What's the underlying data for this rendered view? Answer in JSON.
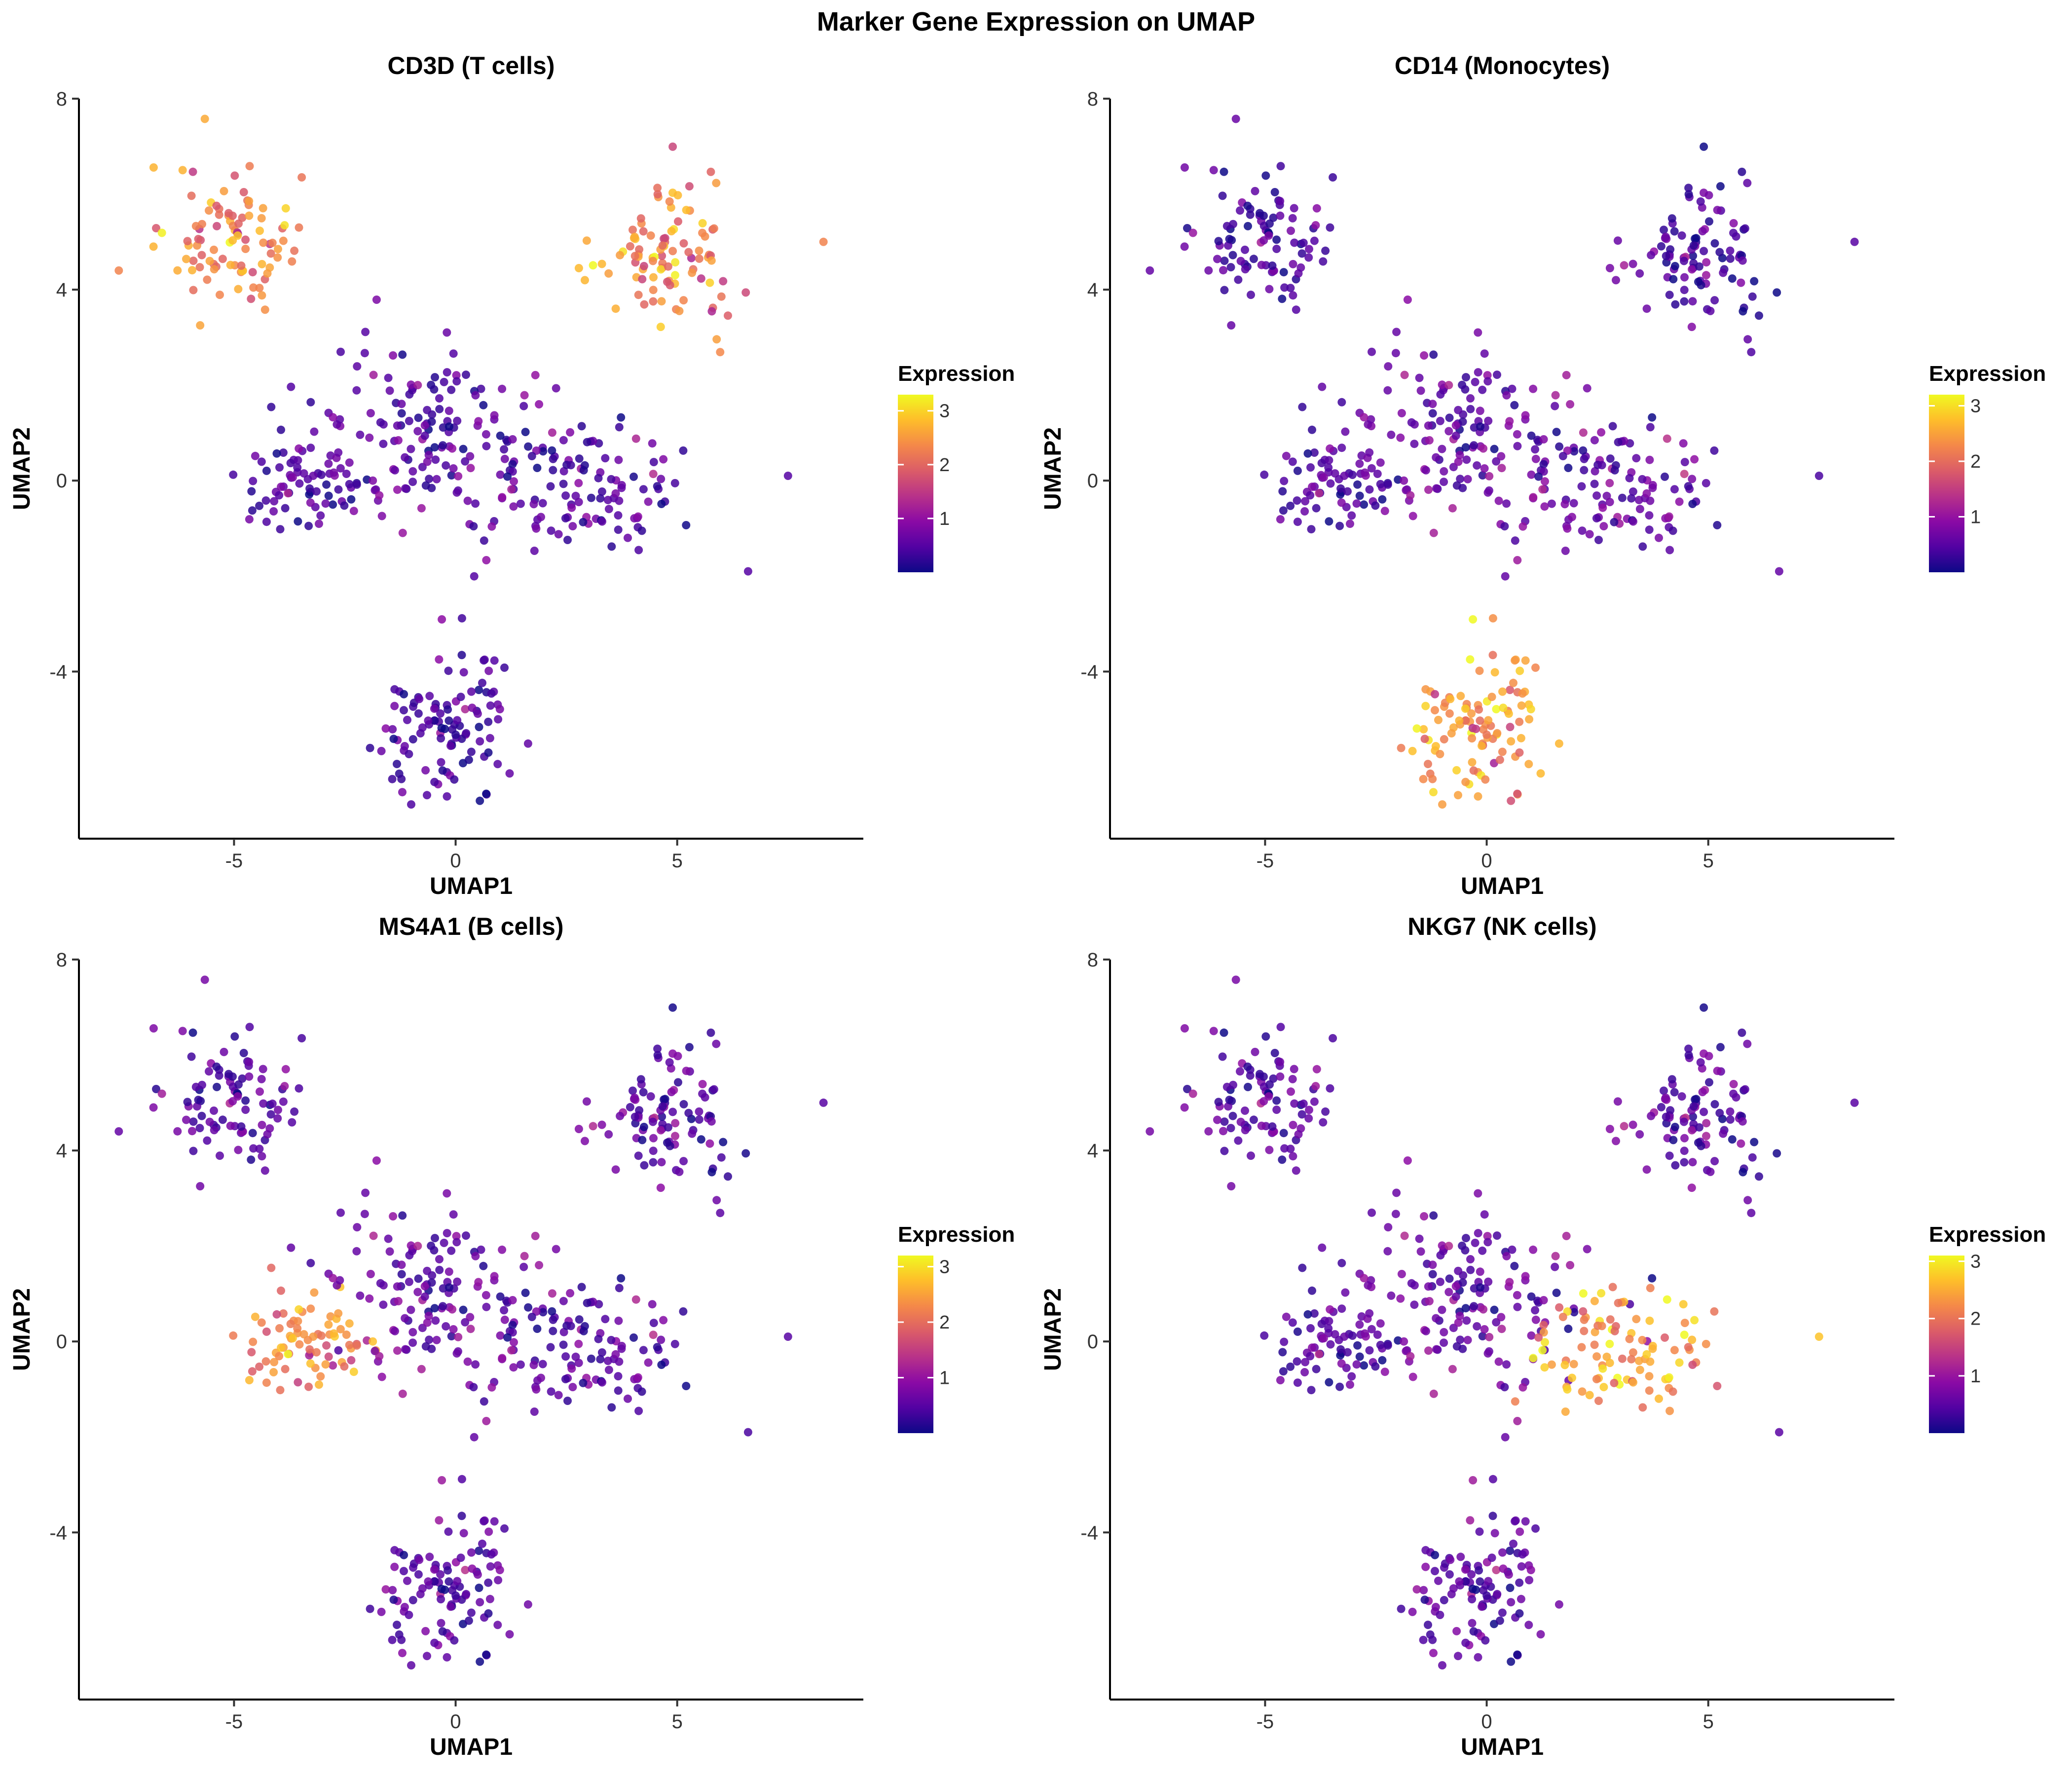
{
  "figure_title": "Marker Gene Expression on UMAP",
  "colors": {
    "colormap": "plasma",
    "stops": [
      "#0d0887",
      "#5302a3",
      "#8b0aa5",
      "#b83289",
      "#db5c68",
      "#f48849",
      "#febd2a",
      "#f0f921"
    ]
  },
  "chart_data": [
    {
      "type": "scatter",
      "title": "CD3D (T cells)",
      "xlabel": "UMAP1",
      "ylabel": "UMAP2",
      "xlim": [
        -8.5,
        9.2
      ],
      "ylim": [
        -7.5,
        8.0
      ],
      "xticks": [
        -5,
        0,
        5
      ],
      "yticks": [
        -4,
        0,
        4,
        8
      ],
      "legend": {
        "title": "Expression",
        "position": "right",
        "ticks": [
          1,
          2,
          3
        ],
        "range": [
          0.0,
          3.3
        ]
      },
      "cluster_levels": {
        "tl": 2.3,
        "tr": 2.3,
        "center": 0.5,
        "right": 0.5,
        "bottom": 0.4
      },
      "outlier_levels": [
        2.3,
        2.3,
        0.5,
        0.5
      ]
    },
    {
      "type": "scatter",
      "title": "CD14 (Monocytes)",
      "xlabel": "UMAP1",
      "ylabel": "UMAP2",
      "xlim": [
        -8.5,
        9.2
      ],
      "ylim": [
        -7.5,
        8.0
      ],
      "xticks": [
        -5,
        0,
        5
      ],
      "yticks": [
        -4,
        0,
        4,
        8
      ],
      "legend": {
        "title": "Expression",
        "position": "right",
        "ticks": [
          1,
          2,
          3
        ],
        "range": [
          0.0,
          3.2
        ]
      },
      "cluster_levels": {
        "tl": 0.4,
        "tr": 0.4,
        "center": 0.6,
        "right": 0.6,
        "bottom": 2.4
      },
      "outlier_levels": [
        0.6,
        0.5,
        0.4,
        0.6
      ]
    },
    {
      "type": "scatter",
      "title": "MS4A1 (B cells)",
      "xlabel": "UMAP1",
      "ylabel": "UMAP2",
      "xlim": [
        -8.5,
        9.2
      ],
      "ylim": [
        -7.5,
        8.0
      ],
      "xticks": [
        -5,
        0,
        5
      ],
      "yticks": [
        -4,
        0,
        4,
        8
      ],
      "legend": {
        "title": "Expression",
        "position": "right",
        "ticks": [
          1,
          2,
          3
        ],
        "range": [
          0.0,
          3.2
        ]
      },
      "cluster_levels": {
        "tl": 0.5,
        "tr": 0.5,
        "center": 0.6,
        "right": 0.5,
        "left": 2.3,
        "bottom": 0.5
      },
      "outlier_levels": [
        0.6,
        0.5,
        0.5,
        0.4
      ]
    },
    {
      "type": "scatter",
      "title": "NKG7 (NK cells)",
      "xlabel": "UMAP1",
      "ylabel": "UMAP2",
      "xlim": [
        -8.5,
        9.2
      ],
      "ylim": [
        -7.5,
        8.0
      ],
      "xticks": [
        -5,
        0,
        5
      ],
      "yticks": [
        -4,
        0,
        4,
        8
      ],
      "legend": {
        "title": "Expression",
        "position": "right",
        "ticks": [
          1,
          2,
          3
        ],
        "range": [
          0.0,
          3.1
        ]
      },
      "cluster_levels": {
        "tl": 0.5,
        "tr": 0.5,
        "center": 0.6,
        "right": 2.4,
        "bottom": 0.5
      },
      "outlier_levels": [
        0.7,
        0.5,
        2.7,
        0.5
      ]
    }
  ]
}
